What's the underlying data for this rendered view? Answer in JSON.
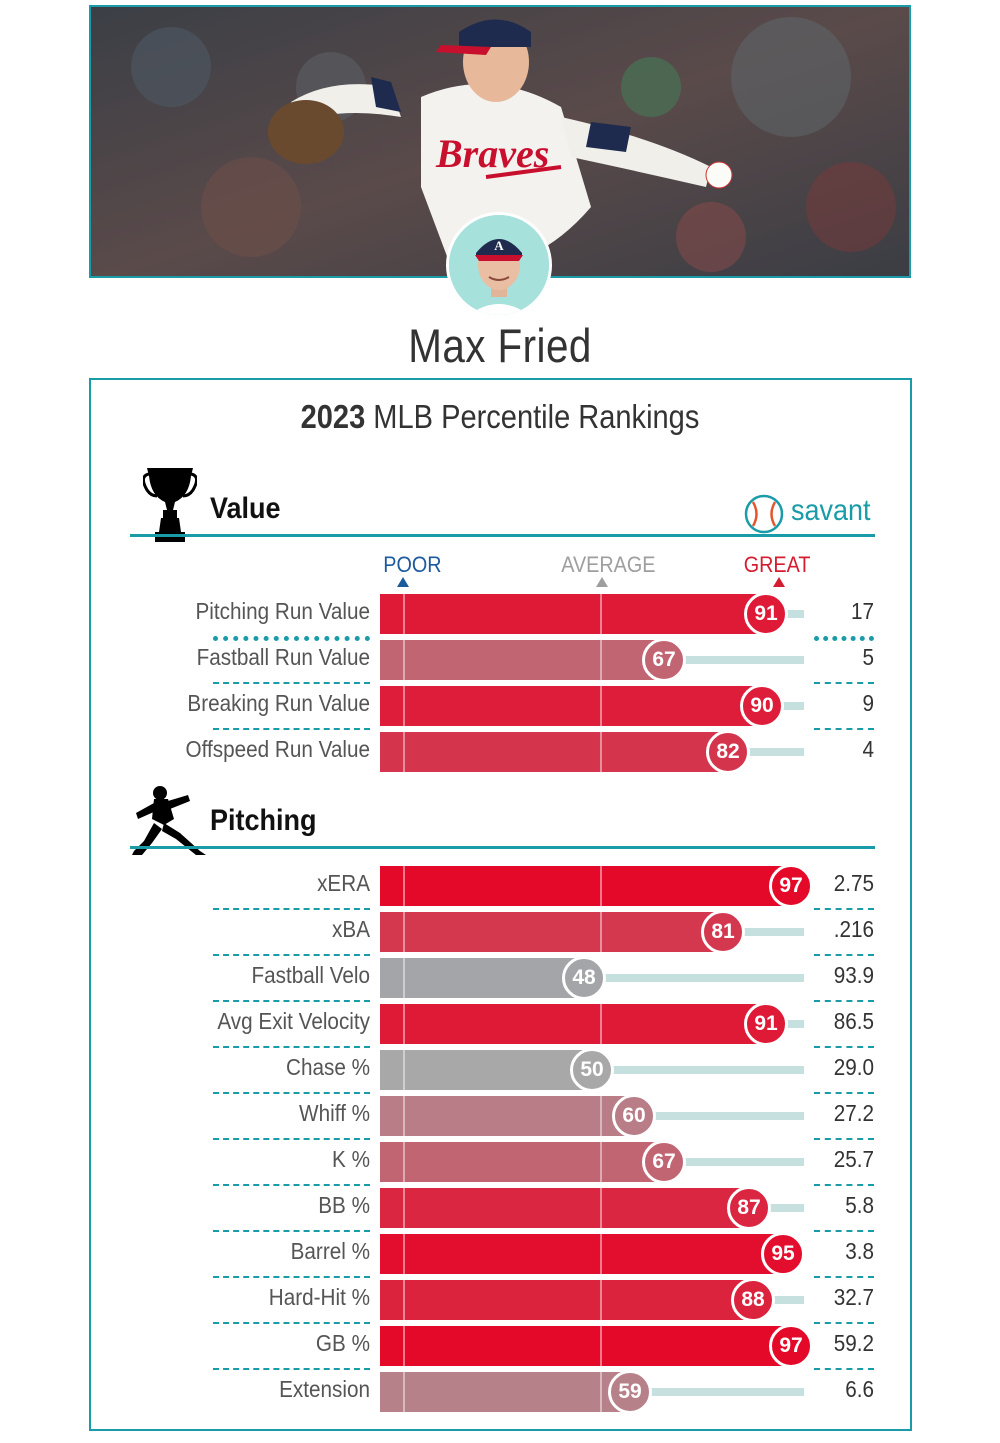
{
  "player": {
    "name": "Max Fried"
  },
  "card": {
    "title_year": "2023",
    "title_rest": " MLB Percentile Rankings",
    "brand": "savant",
    "scale": {
      "poor": "POOR",
      "average": "AVERAGE",
      "great": "GREAT"
    }
  },
  "sections": [
    {
      "title": "Value",
      "icon": "trophy-icon"
    },
    {
      "title": "Pitching",
      "icon": "pitcher-icon"
    }
  ],
  "colors": {
    "accent": "#1a9ba8",
    "great": "#d41d30",
    "poor": "#1c5a9e",
    "average": "#9e9e9e",
    "track": "#c6dfdf"
  },
  "chart_data": {
    "type": "bar",
    "xlim": [
      0,
      100
    ],
    "value_metrics": [
      {
        "label": "Pitching Run Value",
        "percentile": 91,
        "value": "17"
      },
      {
        "label": "Fastball Run Value",
        "percentile": 67,
        "value": "5"
      },
      {
        "label": "Breaking Run Value",
        "percentile": 90,
        "value": "9"
      },
      {
        "label": "Offspeed Run Value",
        "percentile": 82,
        "value": "4"
      }
    ],
    "pitching_metrics": [
      {
        "label": "xERA",
        "percentile": 97,
        "value": "2.75"
      },
      {
        "label": "xBA",
        "percentile": 81,
        "value": ".216"
      },
      {
        "label": "Fastball Velo",
        "percentile": 48,
        "value": "93.9"
      },
      {
        "label": "Avg Exit Velocity",
        "percentile": 91,
        "value": "86.5"
      },
      {
        "label": "Chase %",
        "percentile": 50,
        "value": "29.0"
      },
      {
        "label": "Whiff %",
        "percentile": 60,
        "value": "27.2"
      },
      {
        "label": "K %",
        "percentile": 67,
        "value": "25.7"
      },
      {
        "label": "BB %",
        "percentile": 87,
        "value": "5.8"
      },
      {
        "label": "Barrel %",
        "percentile": 95,
        "value": "3.8"
      },
      {
        "label": "Hard-Hit %",
        "percentile": 88,
        "value": "32.7"
      },
      {
        "label": "GB %",
        "percentile": 97,
        "value": "59.2"
      },
      {
        "label": "Extension",
        "percentile": 59,
        "value": "6.6"
      }
    ]
  }
}
